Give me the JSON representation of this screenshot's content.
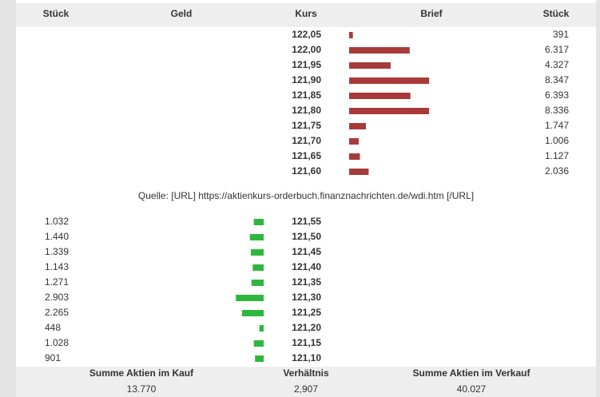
{
  "header": {
    "columns": [
      "Stück",
      "Geld",
      "Kurs",
      "Brief",
      "Stück"
    ]
  },
  "asks": {
    "color": "#a83a3a",
    "rows": [
      {
        "price": "122,05",
        "qty": 391
      },
      {
        "price": "122,00",
        "qty": {
          "value": 6317,
          "label": "6.317"
        }
      },
      {
        "price": "121,95",
        "qty": {
          "value": 4327,
          "label": "4.327"
        }
      },
      {
        "price": "121,90",
        "qty": {
          "value": 8347,
          "label": "8.347"
        }
      },
      {
        "price": "121,85",
        "qty": {
          "value": 6393,
          "label": "6.393"
        }
      },
      {
        "price": "121,80",
        "qty": {
          "value": 8336,
          "label": "8.336"
        }
      },
      {
        "price": "121,75",
        "qty": {
          "value": 1747,
          "label": "1.747"
        }
      },
      {
        "price": "121,70",
        "qty": {
          "value": 1006,
          "label": "1.006"
        }
      },
      {
        "price": "121,65",
        "qty": {
          "value": 1127,
          "label": "1.127"
        }
      },
      {
        "price": "121,60",
        "qty": {
          "value": 2036,
          "label": "2.036"
        }
      }
    ]
  },
  "source": "Quelle: [URL] https://aktienkurs-orderbuch.finanznachrichten.de/wdi.htm [/URL]",
  "bids": {
    "color": "#2db83d",
    "rows": [
      {
        "price": "121,55",
        "qty": {
          "value": 1032,
          "label": "1.032"
        }
      },
      {
        "price": "121,50",
        "qty": {
          "value": 1440,
          "label": "1.440"
        }
      },
      {
        "price": "121,45",
        "qty": {
          "value": 1339,
          "label": "1.339"
        }
      },
      {
        "price": "121,40",
        "qty": {
          "value": 1143,
          "label": "1.143"
        }
      },
      {
        "price": "121,35",
        "qty": {
          "value": 1271,
          "label": "1.271"
        }
      },
      {
        "price": "121,30",
        "qty": {
          "value": 2903,
          "label": "2.903"
        }
      },
      {
        "price": "121,25",
        "qty": {
          "value": 2265,
          "label": "2.265"
        }
      },
      {
        "price": "121,20",
        "qty": 448
      },
      {
        "price": "121,15",
        "qty": {
          "value": 1028,
          "label": "1.028"
        }
      },
      {
        "price": "121,10",
        "qty": 901
      }
    ]
  },
  "summary": [
    {
      "label": "Summe Aktien im Kauf",
      "value": "13.770"
    },
    {
      "label": "Verhältnis",
      "value": "2,907"
    },
    {
      "label": "Summe Aktien im Verkauf",
      "value": "40.027"
    }
  ]
}
